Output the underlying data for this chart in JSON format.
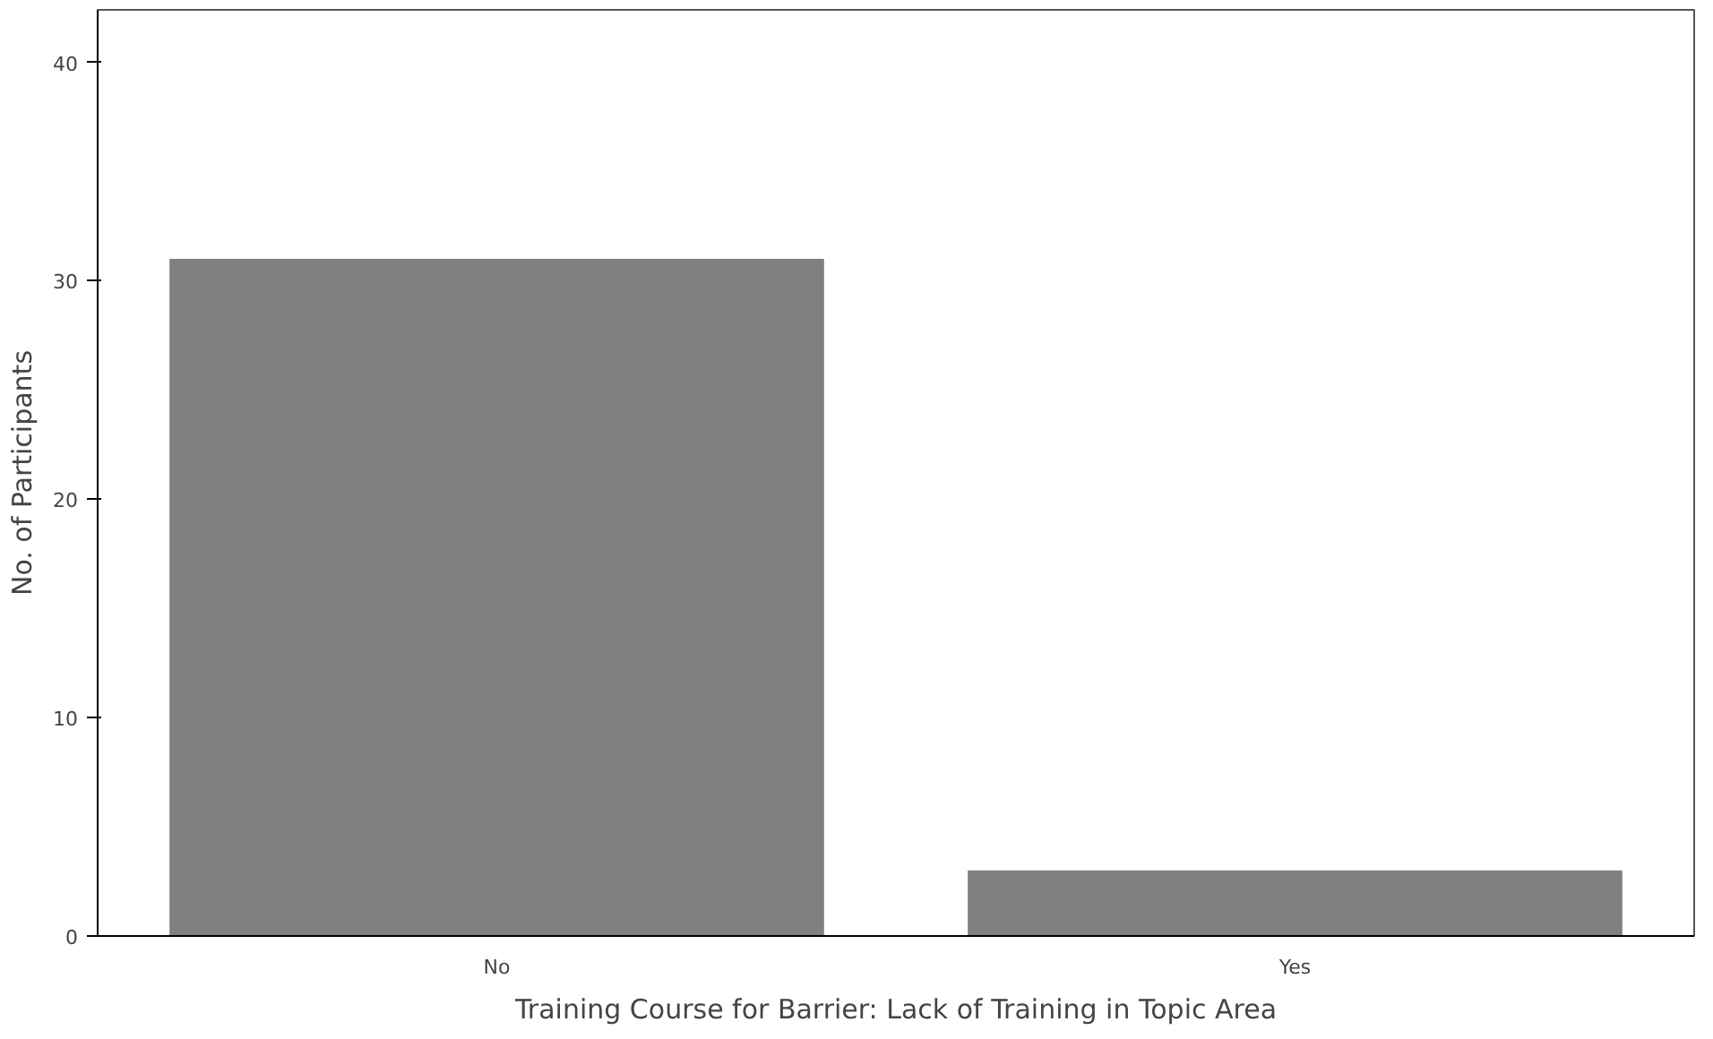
{
  "chart_data": {
    "type": "bar",
    "xlabel": "Training Course for Barrier: Lack of Training in Topic Area",
    "ylabel": "No. of Participants",
    "categories": [
      "No",
      "Yes"
    ],
    "values": [
      31,
      3
    ],
    "color": "#808080",
    "ylim": [
      0,
      42.4
    ],
    "yticks": [
      0,
      10,
      20,
      30,
      40
    ],
    "grid": false
  }
}
